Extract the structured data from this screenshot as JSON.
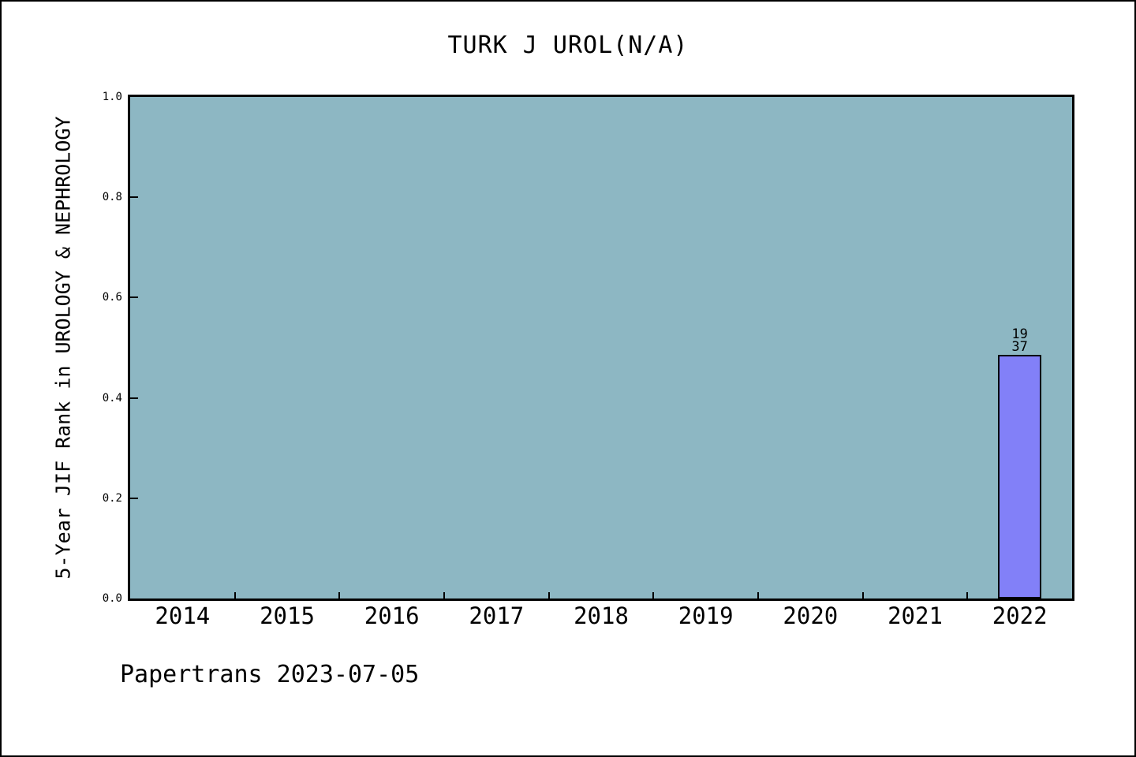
{
  "title": "TURK J UROL(N/A)",
  "footer": "Papertrans 2023-07-05",
  "colors": {
    "canvas_bg": "#ffffff",
    "frame": "#000000",
    "plot_bg": "#8db7c3",
    "bar_fill": "#8280f8",
    "bar_border": "#000000",
    "text": "#000000"
  },
  "chart_data": {
    "type": "bar",
    "title": "TURK J UROL(N/A)",
    "xlabel": "",
    "ylabel": "5-Year JIF Rank in UROLOGY & NEPHROLOGY",
    "categories": [
      "2014",
      "2015",
      "2016",
      "2017",
      "2018",
      "2019",
      "2020",
      "2021",
      "2022"
    ],
    "values": [
      null,
      null,
      null,
      null,
      null,
      null,
      null,
      null,
      0.486
    ],
    "annotations": [
      {
        "category": "2022",
        "lines": [
          "19",
          "37"
        ]
      }
    ],
    "ylim": [
      0.0,
      1.0
    ],
    "yticks": [
      "0.0",
      "0.2",
      "0.4",
      "0.6",
      "0.8",
      "1.0"
    ],
    "grid": false,
    "legend": false,
    "footer": "Papertrans 2023-07-05"
  }
}
